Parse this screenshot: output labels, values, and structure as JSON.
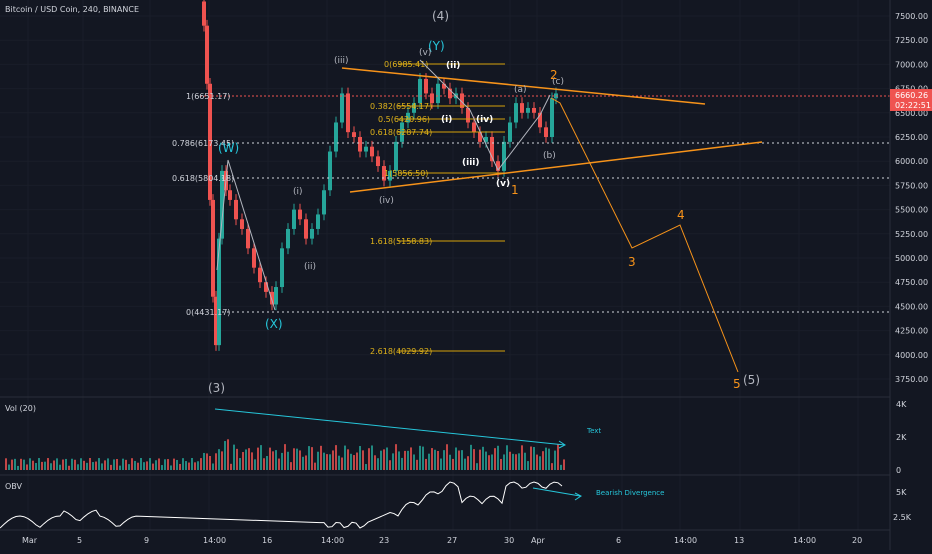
{
  "header": {
    "symbol_title": "Bitcoin / USD Coin, 240, BINANCE"
  },
  "colors": {
    "background": "#131722",
    "grid": "#1e222d",
    "candle_up": "#26a69a",
    "candle_down": "#ef5350",
    "wave_orange": "#f7931a",
    "fib_gold": "#d4a20a",
    "wave_cyan": "#26c6da",
    "wave_gray": "#b2b5be",
    "current_price_bg": "#ef5350",
    "dotted_level": "#d1d4dc"
  },
  "price_axis": {
    "ticks": [
      "7500.00",
      "7250.00",
      "7000.00",
      "6750.00",
      "6500.00",
      "6250.00",
      "6000.00",
      "5750.00",
      "5500.00",
      "5250.00",
      "5000.00",
      "4750.00",
      "4500.00",
      "4250.00",
      "4000.00",
      "3750.00"
    ],
    "current_price": "6660.26",
    "countdown": "02:22:51"
  },
  "time_axis": {
    "labels": [
      "Mar",
      "5",
      "9",
      "14:00",
      "16",
      "14:00",
      "23",
      "27",
      "30",
      "Apr",
      "6",
      "14:00",
      "13",
      "14:00",
      "20"
    ]
  },
  "fib_levels": [
    {
      "label": "1(6651.17)",
      "price": 6651.17
    },
    {
      "label": "0.786(6173.45)",
      "price": 6173.45
    },
    {
      "label": "0.618(5804.18)",
      "price": 5804.18
    },
    {
      "label": "0(4431.17)",
      "price": 4431.17
    }
  ],
  "fib_extension": [
    {
      "label": "0(6985.41)",
      "price": 6985.41
    },
    {
      "label": "0.382(6554.17)",
      "price": 6554.17
    },
    {
      "label": "0.5(6420.96)",
      "price": 6420.96
    },
    {
      "label": "0.618(6287.74)",
      "price": 6287.74
    },
    {
      "label": "1(5856.50)",
      "price": 5856.5
    },
    {
      "label": "1.618(5158.83)",
      "price": 5158.83
    },
    {
      "label": "2.618(4029.92)",
      "price": 4029.92
    }
  ],
  "wave_labels": {
    "w4_top": "(4)",
    "w3_bottom": "(3)",
    "w5_end": "(5)",
    "W": "(W)",
    "X": "(X)",
    "Y": "(Y)",
    "i1": "(i)",
    "ii1": "(ii)",
    "iii1": "(iii)",
    "iv1": "(iv)",
    "v1": "(v)",
    "ii2": "(ii)",
    "i2": "(i)",
    "iv2": "(iv)",
    "iii2": "(iii)",
    "v2": "(v)",
    "a": "(a)",
    "b": "(b)",
    "c": "(c)",
    "n1": "1",
    "n2": "2",
    "n3": "3",
    "n4": "4",
    "n5": "5"
  },
  "volume_pane": {
    "title": "Vol (20)",
    "ticks": [
      "4K",
      "2K",
      "0"
    ],
    "annotation": "Text"
  },
  "obv_pane": {
    "title": "OBV",
    "ticks": [
      "5K",
      "2.5K"
    ],
    "annotation": "Bearish Divergence"
  },
  "chart_data": {
    "type": "candlestick",
    "price_range": [
      3600,
      7700
    ],
    "wave_projection_prices": {
      "p2": 6720,
      "p3": 5080,
      "p4": 5320,
      "p5": 3790
    }
  }
}
